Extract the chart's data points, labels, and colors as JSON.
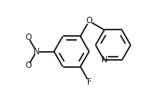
{
  "bg_color": "#ffffff",
  "line_color": "#1a1a1a",
  "line_width": 1.3,
  "font_size": 7.5,
  "figsize": [
    1.99,
    1.29
  ],
  "dpi": 100,
  "atoms": {
    "O": "O",
    "N_nitro": "N",
    "O1_nitro": "O",
    "O2_nitro": "O",
    "F": "F",
    "N_py": "N"
  }
}
